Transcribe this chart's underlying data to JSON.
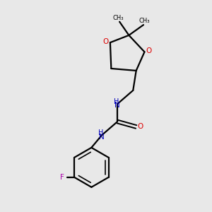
{
  "background_color": "#e8e8e8",
  "bond_color": "#000000",
  "oxygen_color": "#dd0000",
  "nitrogen_color": "#0000bb",
  "fluorine_color": "#aa00aa",
  "figsize": [
    3.0,
    3.0
  ],
  "dpi": 100,
  "xlim": [
    0,
    10
  ],
  "ylim": [
    0,
    10
  ],
  "lw": 1.6,
  "fs": 7.5
}
